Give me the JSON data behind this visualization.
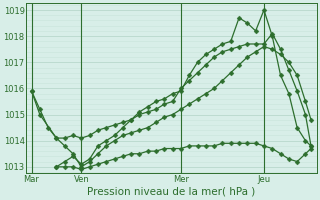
{
  "bg_color": "#d8eee8",
  "grid_major_color": "#b8d8cc",
  "grid_minor_color": "#c8e4da",
  "line_color": "#2d6e2d",
  "ylim": [
    1012.75,
    1019.25
  ],
  "yticks": [
    1013,
    1014,
    1015,
    1016,
    1017,
    1018,
    1019
  ],
  "xlabel": "Pression niveau de la mer( hPa )",
  "xtick_labels": [
    "Mar",
    "Ven",
    "Mer",
    "Jeu"
  ],
  "xtick_positions": [
    0,
    18,
    54,
    84
  ],
  "total_points": 102,
  "vlines_x": [
    0,
    18,
    54,
    84
  ],
  "line1_x": [
    0,
    3,
    6,
    9,
    12,
    15,
    18,
    21,
    24,
    27,
    30,
    33,
    36,
    39,
    42,
    45,
    48,
    51,
    54,
    57,
    60,
    63,
    66,
    69,
    72,
    75,
    78,
    81,
    84,
    87,
    90,
    93,
    96,
    99,
    101
  ],
  "line1_y": [
    1015.9,
    1015.2,
    1014.5,
    1014.1,
    1013.8,
    1013.5,
    1013.0,
    1013.2,
    1013.5,
    1013.8,
    1014.0,
    1014.2,
    1014.3,
    1014.4,
    1014.5,
    1014.7,
    1014.9,
    1015.0,
    1015.2,
    1015.4,
    1015.6,
    1015.8,
    1016.0,
    1016.3,
    1016.6,
    1016.9,
    1017.2,
    1017.4,
    1017.6,
    1017.5,
    1017.3,
    1017.0,
    1016.5,
    1015.5,
    1014.8
  ],
  "line2_x": [
    9,
    12,
    15,
    18,
    21,
    24,
    27,
    30,
    33,
    36,
    39,
    42,
    45,
    48,
    51,
    54,
    57,
    60,
    63,
    66,
    69,
    72,
    75,
    78,
    81,
    84,
    87,
    90,
    93,
    96,
    99,
    101
  ],
  "line2_y": [
    1013.0,
    1013.0,
    1013.0,
    1012.9,
    1013.0,
    1013.1,
    1013.2,
    1013.3,
    1013.4,
    1013.5,
    1013.5,
    1013.6,
    1013.6,
    1013.7,
    1013.7,
    1013.7,
    1013.8,
    1013.8,
    1013.8,
    1013.8,
    1013.9,
    1013.9,
    1013.9,
    1013.9,
    1013.9,
    1013.8,
    1013.7,
    1013.5,
    1013.3,
    1013.2,
    1013.5,
    1013.7
  ],
  "line3_x": [
    0,
    3,
    9,
    12,
    15,
    18,
    21,
    24,
    27,
    30,
    33,
    36,
    39,
    42,
    45,
    48,
    51,
    54,
    57,
    60,
    63,
    66,
    69,
    72,
    75,
    78,
    81,
    84,
    87,
    90,
    93,
    96,
    99,
    101
  ],
  "line3_y": [
    1015.9,
    1015.0,
    1014.1,
    1014.1,
    1014.2,
    1014.1,
    1014.2,
    1014.4,
    1014.5,
    1014.6,
    1014.7,
    1014.8,
    1015.0,
    1015.1,
    1015.2,
    1015.4,
    1015.5,
    1016.0,
    1016.3,
    1016.6,
    1016.9,
    1017.2,
    1017.4,
    1017.5,
    1017.6,
    1017.7,
    1017.7,
    1017.7,
    1018.1,
    1017.5,
    1016.7,
    1015.9,
    1015.0,
    1013.8
  ],
  "line4_x": [
    9,
    12,
    15,
    18,
    21,
    24,
    27,
    30,
    33,
    36,
    39,
    42,
    45,
    48,
    51,
    54,
    57,
    60,
    63,
    66,
    69,
    72,
    75,
    78,
    81,
    84,
    87,
    90,
    93,
    96,
    99,
    101
  ],
  "line4_y": [
    1013.0,
    1013.2,
    1013.4,
    1013.1,
    1013.3,
    1013.8,
    1014.0,
    1014.2,
    1014.5,
    1014.8,
    1015.1,
    1015.3,
    1015.5,
    1015.6,
    1015.8,
    1015.9,
    1016.5,
    1017.0,
    1017.3,
    1017.5,
    1017.7,
    1017.8,
    1018.7,
    1018.5,
    1018.2,
    1019.0,
    1018.0,
    1016.5,
    1015.8,
    1014.5,
    1014.0,
    1013.8
  ],
  "marker_size": 2.5,
  "linewidth": 0.9,
  "tick_fontsize": 6,
  "xlabel_fontsize": 7.5
}
